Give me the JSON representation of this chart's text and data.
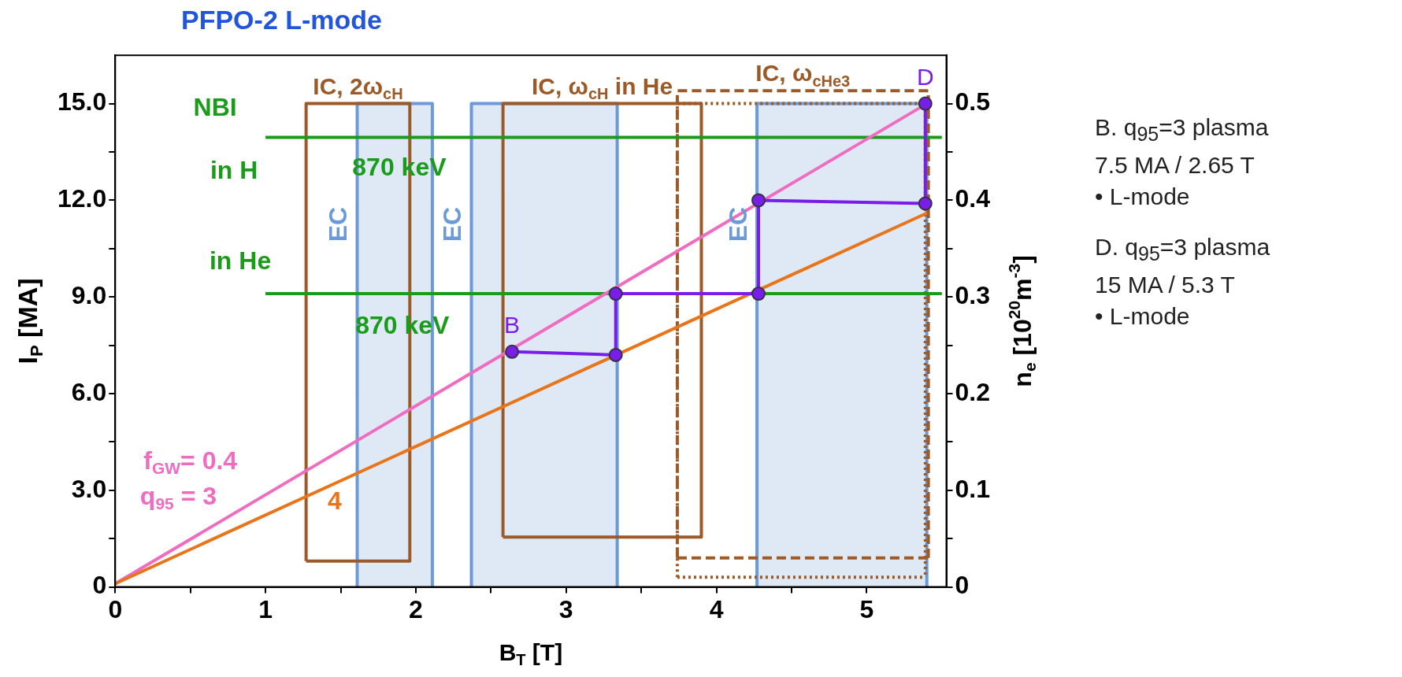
{
  "chart_data": {
    "type": "line",
    "title": "PFPO-2 L-mode",
    "xlabel": "B$_{T}$ [T]",
    "ylabel": "I$_{P}$ [MA]",
    "y2label": "n$_{e}$ [10$^{20}$m$^{-3}$]",
    "xlim": [
      0,
      5.53
    ],
    "xticks": [
      0,
      {
        "value": 0.5,
        "label": null
      },
      1,
      {
        "value": 1.5,
        "label": null
      },
      2,
      {
        "value": 2.5,
        "label": null
      },
      3,
      {
        "value": 3.5,
        "label": null
      },
      4,
      {
        "value": 4.5,
        "label": null
      },
      5
    ],
    "ylim": [
      0,
      16.5
    ],
    "yticks": [
      0,
      {
        "value": 1.5,
        "label": null
      },
      {
        "value": 3,
        "label": "3.0"
      },
      {
        "value": 4.5,
        "label": null
      },
      {
        "value": 6,
        "label": "6.0"
      },
      {
        "value": 7.5,
        "label": null
      },
      {
        "value": 9,
        "label": "9.0"
      },
      {
        "value": 10.5,
        "label": null
      },
      {
        "value": 12,
        "label": "12.0"
      },
      {
        "value": 13.5,
        "label": null
      },
      {
        "value": 15,
        "label": "15.0"
      }
    ],
    "y2lim": [
      0,
      0.55
    ],
    "y2ticks": [
      0,
      {
        "value": 0.05,
        "label": null
      },
      0.1,
      {
        "value": 0.15,
        "label": null
      },
      0.2,
      {
        "value": 0.25,
        "label": null
      },
      0.3,
      {
        "value": 0.35,
        "label": null
      },
      0.4,
      {
        "value": 0.45,
        "label": null
      },
      0.5
    ],
    "series": [
      {
        "type": "area",
        "name": "EC",
        "color": "#6c9ad8",
        "x": [
          1.61,
          1.61,
          2.11,
          2.11
        ],
        "values": [
          0,
          15,
          15,
          0
        ]
      },
      {
        "type": "area",
        "name": "EC",
        "color": "#6c9ad8",
        "x": [
          2.37,
          2.37,
          3.34,
          3.34
        ],
        "values": [
          0,
          15,
          15,
          0
        ]
      },
      {
        "type": "area",
        "name": "EC",
        "color": "#6c9ad8",
        "x": [
          4.27,
          4.27,
          5.4,
          5.4
        ],
        "values": [
          0,
          15,
          15,
          0
        ]
      },
      {
        "name": "IC, 2ω$_{cH}$",
        "color": "#9c5a28",
        "x": [
          1.27,
          1.27,
          1.96,
          1.96
        ],
        "values": [
          0.8,
          15,
          15,
          0.8
        ]
      },
      {
        "name": "IC, ω$_{cH}$ in He",
        "color": "#9c5a28",
        "x": [
          2.58,
          2.58,
          3.9,
          3.9
        ],
        "values": [
          1.55,
          15,
          15,
          1.55
        ]
      },
      {
        "name": "IC, ω$_{cHe3}$",
        "color": "#9c5a28",
        "line_style": "dashed",
        "x": [
          3.74,
          3.74,
          5.41,
          5.41
        ],
        "values": [
          0.9,
          15.4,
          15.4,
          0.9
        ]
      },
      {
        "color": "#9c5a28",
        "line_style": "dotted",
        "x": [
          3.74,
          3.74,
          5.39,
          5.39
        ],
        "values": [
          0.3,
          15,
          15,
          0.3
        ]
      },
      {
        "color": "#9c5a28",
        "x": [
          1.27,
          1.96
        ],
        "values": [
          0.8,
          0.8
        ]
      },
      {
        "color": "#9c5a28",
        "x": [
          2.58,
          3.9
        ],
        "values": [
          1.55,
          1.55
        ]
      },
      {
        "color": "#9c5a28",
        "line_style": "dashed",
        "x": [
          3.74,
          5.41
        ],
        "values": [
          0.9,
          0.9
        ]
      },
      {
        "color": "#9c5a28",
        "line_style": "dotted",
        "x": [
          3.74,
          5.39
        ],
        "values": [
          0.3,
          0.3
        ]
      },
      {
        "color": "#1a9c1a",
        "x": [
          1,
          5.5
        ],
        "values": [
          13.95,
          13.95
        ]
      },
      {
        "color": "#1a9c1a",
        "x": [
          1,
          5.5
        ],
        "values": [
          9.1,
          9.1
        ]
      },
      {
        "color": "#f06cc0",
        "x": [
          0,
          5.4
        ],
        "values": [
          0.1,
          15
        ]
      },
      {
        "color": "#e8751a",
        "x": [
          0,
          5.4
        ],
        "values": [
          0.1,
          11.6
        ]
      },
      {
        "color": "#7a1de8",
        "marker": "circle",
        "x": [
          2.64,
          3.33,
          3.33,
          4.28,
          4.28,
          5.39,
          5.39
        ],
        "values": [
          7.3,
          7.2,
          9.1,
          9.1,
          12.0,
          11.9,
          15.0
        ],
        "value_labels": [
          "B",
          null,
          null,
          null,
          null,
          null,
          "D"
        ]
      }
    ],
    "annotations": [
      {
        "text": "NBI",
        "x": 1,
        "y": 13.95
      },
      {
        "text": "in H",
        "x": 1,
        "y": 13.95
      },
      {
        "text": "870 keV",
        "x": 1.89,
        "y": 13.95
      },
      {
        "text": "in He",
        "x": 1,
        "y": 9.1
      },
      {
        "text": "870 keV",
        "x": 1.91,
        "y": 9.1
      },
      {
        "text": "f$_{GW}$= 0.4",
        "x": 0.5,
        "y": 1.48
      },
      {
        "text": "q$_{95}$ = 3",
        "x": 0.42,
        "y": 1.26
      },
      {
        "text": "4",
        "x": 1.46,
        "y": 3.21
      },
      "B. q$_{95}$=3 plasma",
      "7.5 MA / 2.65 T",
      "• L-mode",
      "D. q$_{95}$=3 plasma",
      "15 MA / 5.3 T",
      "• L-mode"
    ]
  }
}
